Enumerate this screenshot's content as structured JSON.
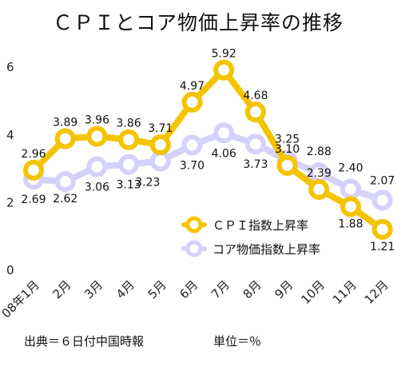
{
  "chart_data": {
    "type": "line",
    "title": "ＣＰＩとコア物価上昇率の推移",
    "categories": [
      "08年1月",
      "2月",
      "3月",
      "4月",
      "5月",
      "6月",
      "7月",
      "8月",
      "9月",
      "10月",
      "11月",
      "12月"
    ],
    "series": [
      {
        "name": "ＣＰＩ指数上昇率",
        "color": "#f5c400",
        "values": [
          2.96,
          3.89,
          3.96,
          3.86,
          3.71,
          4.97,
          5.92,
          4.68,
          3.1,
          2.39,
          1.88,
          1.21
        ],
        "labels": [
          "2.96",
          "3.89",
          "3.96",
          "3.86",
          "3.71",
          "4.97",
          "5.92",
          "4.68",
          "3.10",
          "2.39",
          "1.88",
          "1.21"
        ]
      },
      {
        "name": "コア物価指数上昇率",
        "color": "#d4d2fb",
        "values": [
          2.69,
          2.62,
          3.06,
          3.13,
          3.23,
          3.7,
          4.06,
          3.73,
          3.25,
          2.88,
          2.4,
          2.07
        ],
        "labels": [
          "2.69",
          "2.62",
          "3.06",
          "3.13",
          "3.23",
          "3.70",
          "4.06",
          "3.73",
          "3.25",
          "2.88",
          "2.40",
          "2.07"
        ]
      }
    ],
    "yticks": [
      0,
      2,
      4,
      6
    ],
    "ylim": [
      0,
      6.5
    ],
    "grid": false,
    "legend_position": "lower-right"
  },
  "footer": {
    "source": "出典＝６日付中国時報",
    "unit": "単位＝％"
  }
}
